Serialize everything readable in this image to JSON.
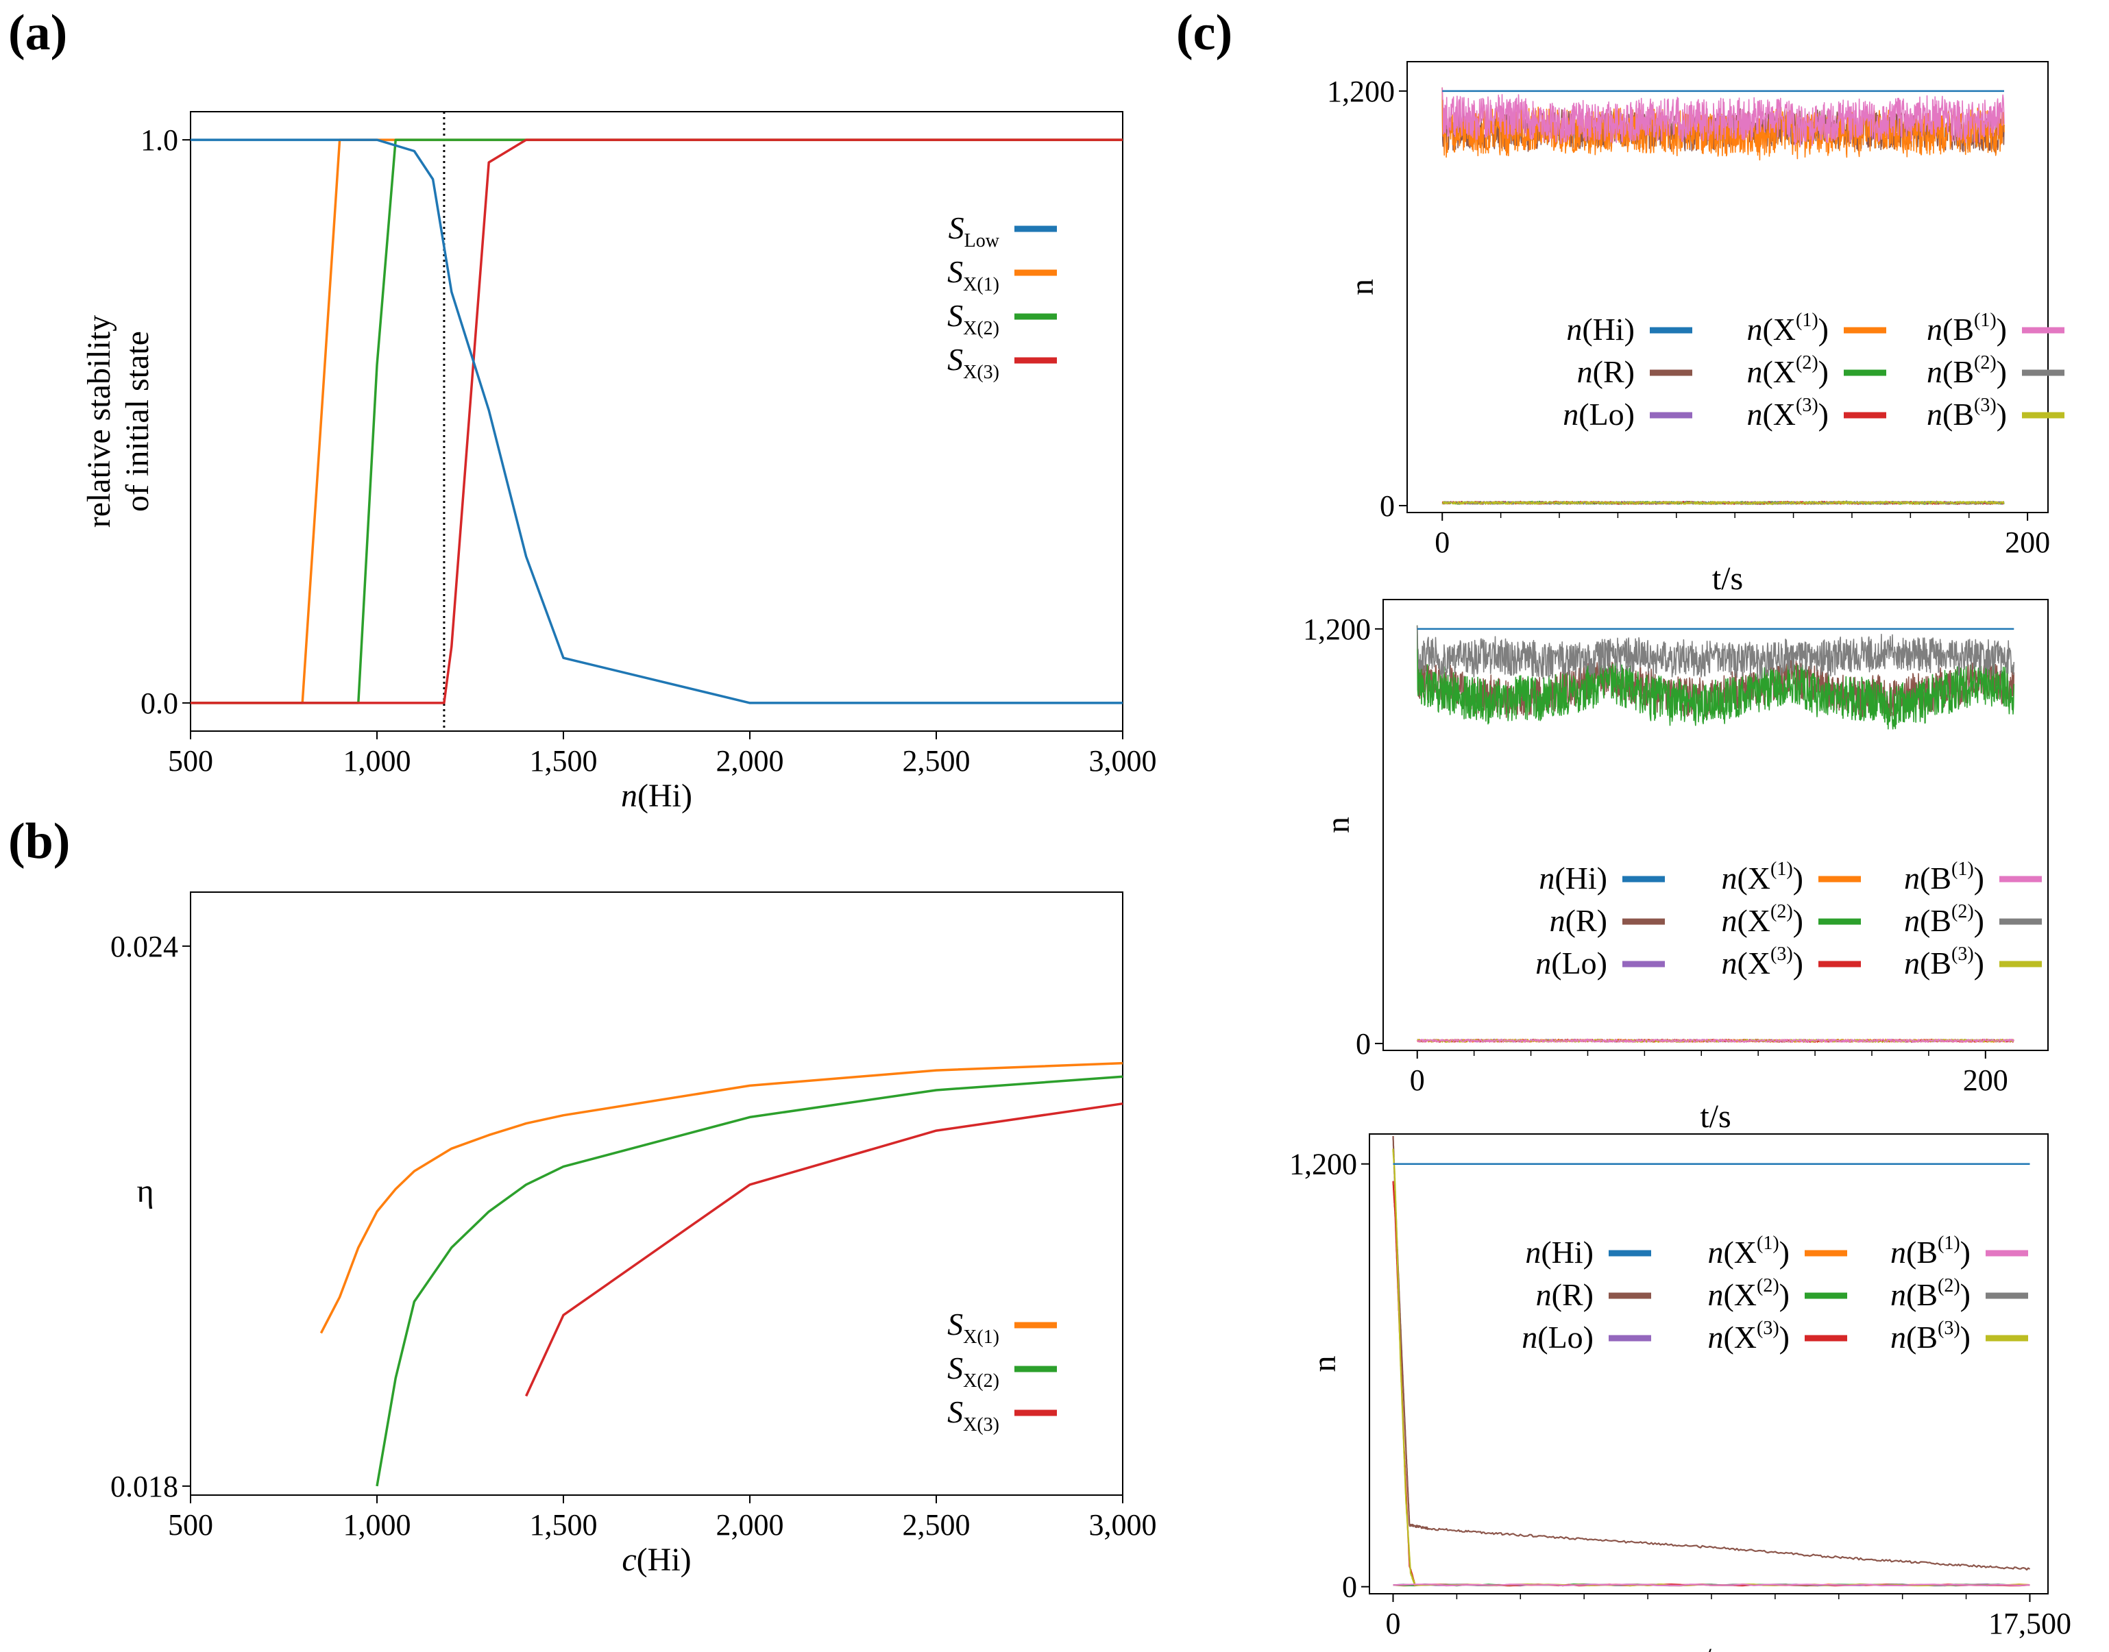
{
  "panel_labels": {
    "a": "(a)",
    "b": "(b)",
    "c": "(c)"
  },
  "colors": {
    "blue": "#1f77b4",
    "orange": "#ff7f0e",
    "green": "#2ca02c",
    "red": "#d62728",
    "purple": "#9467bd",
    "brown": "#8c564b",
    "pink": "#e377c2",
    "gray": "#7f7f7f",
    "olive": "#bcbd22"
  },
  "chart_data": [
    {
      "id": "a",
      "type": "line",
      "title": "",
      "xlabel_italic": "n",
      "xlabel_rest": "(Hi)",
      "ylabel_line1": "relative stability",
      "ylabel_line2": "of initial state",
      "xlim": [
        500,
        3000
      ],
      "ylim": [
        -0.05,
        1.05
      ],
      "xticks": [
        500,
        1000,
        1500,
        2000,
        2500,
        3000
      ],
      "xtick_labels": [
        "500",
        "1,000",
        "1,500",
        "2,000",
        "2,500",
        "3,000"
      ],
      "yticks": [
        0.0,
        1.0
      ],
      "ytick_labels": [
        "0.0",
        "1.0"
      ],
      "vline_x": 1180,
      "legend_position": "right",
      "series": [
        {
          "name": "S",
          "sub": "Low",
          "color": "blue",
          "x": [
            500,
            1000,
            1100,
            1150,
            1200,
            1300,
            1400,
            1500,
            2000,
            2500,
            3000
          ],
          "y": [
            1.0,
            1.0,
            0.98,
            0.93,
            0.73,
            0.52,
            0.26,
            0.08,
            0.0,
            0.0,
            0.0
          ]
        },
        {
          "name": "S",
          "sub": "X(1)",
          "color": "orange",
          "x": [
            500,
            800,
            900,
            1000,
            3000
          ],
          "y": [
            0.0,
            0.0,
            1.0,
            1.0,
            1.0
          ]
        },
        {
          "name": "S",
          "sub": "X(2)",
          "color": "green",
          "x": [
            500,
            950,
            1000,
            1050,
            3000
          ],
          "y": [
            0.0,
            0.0,
            0.6,
            1.0,
            1.0
          ]
        },
        {
          "name": "S",
          "sub": "X(3)",
          "color": "red",
          "x": [
            500,
            1180,
            1200,
            1300,
            1400,
            3000
          ],
          "y": [
            0.0,
            0.0,
            0.1,
            0.96,
            1.0,
            1.0
          ]
        }
      ]
    },
    {
      "id": "b",
      "type": "line",
      "title": "",
      "xlabel_italic": "c",
      "xlabel_rest": "(Hi)",
      "ylabel": "η",
      "xlim": [
        500,
        3000
      ],
      "ylim": [
        0.0179,
        0.0246
      ],
      "xticks": [
        500,
        1000,
        1500,
        2000,
        2500,
        3000
      ],
      "xtick_labels": [
        "500",
        "1,000",
        "1,500",
        "2,000",
        "2,500",
        "3,000"
      ],
      "yticks": [
        0.018,
        0.024
      ],
      "ytick_labels": [
        "0.018",
        "0.024"
      ],
      "legend_position": "lower right",
      "series": [
        {
          "name": "S",
          "sub": "X(1)",
          "color": "orange",
          "x": [
            850,
            900,
            950,
            1000,
            1050,
            1100,
            1200,
            1300,
            1400,
            1500,
            2000,
            2500,
            3000
          ],
          "y": [
            0.0197,
            0.0201,
            0.02065,
            0.02105,
            0.0213,
            0.0215,
            0.02175,
            0.0219,
            0.02203,
            0.02212,
            0.02245,
            0.02262,
            0.0227
          ]
        },
        {
          "name": "S",
          "sub": "X(2)",
          "color": "green",
          "x": [
            1000,
            1050,
            1100,
            1200,
            1300,
            1400,
            1500,
            2000,
            2500,
            3000
          ],
          "y": [
            0.018,
            0.0192,
            0.02005,
            0.02065,
            0.02105,
            0.02135,
            0.02155,
            0.0221,
            0.0224,
            0.02255
          ]
        },
        {
          "name": "S",
          "sub": "X(3)",
          "color": "red",
          "x": [
            1400,
            1500,
            2000,
            2500,
            3000
          ],
          "y": [
            0.019,
            0.0199,
            0.02135,
            0.02195,
            0.02225
          ]
        }
      ]
    },
    {
      "id": "c1",
      "type": "line",
      "title": "",
      "xlabel": "t/s",
      "ylabel": "n",
      "xlim": [
        -12,
        207
      ],
      "ylim": [
        -20,
        1285
      ],
      "xticks": [
        0,
        200
      ],
      "xtick_labels": [
        "0",
        "200"
      ],
      "minor_xticks": [
        20,
        40,
        60,
        80,
        100,
        120,
        140,
        160,
        180
      ],
      "yticks": [
        0,
        1200
      ],
      "ytick_labels": [
        "0",
        "1,200"
      ],
      "t_end": 192,
      "legend_position": "center right",
      "series": [
        {
          "name": "Hi",
          "sup": "",
          "color": "blue",
          "kind": "const",
          "level": 1200
        },
        {
          "name": "R",
          "sup": "",
          "color": "brown",
          "kind": "noise",
          "level": 1085,
          "amp": 65,
          "drift": 0
        },
        {
          "name": "Lo",
          "sup": "",
          "color": "purple",
          "kind": "noise",
          "level": 8,
          "amp": 5,
          "drift": 0
        },
        {
          "name": "X",
          "sup": "(1)",
          "color": "orange",
          "kind": "noise",
          "level": 1080,
          "amp": 80,
          "drift": 0
        },
        {
          "name": "X",
          "sup": "(2)",
          "color": "green",
          "kind": "noise",
          "level": 8,
          "amp": 5,
          "drift": 0
        },
        {
          "name": "X",
          "sup": "(3)",
          "color": "red",
          "kind": "noise",
          "level": 8,
          "amp": 5,
          "drift": 0
        },
        {
          "name": "B",
          "sup": "(1)",
          "color": "pink",
          "kind": "noise",
          "level": 1115,
          "amp": 75,
          "drift": 0
        },
        {
          "name": "B",
          "sup": "(2)",
          "color": "gray",
          "kind": "noise",
          "level": 8,
          "amp": 5,
          "drift": 0
        },
        {
          "name": "B",
          "sup": "(3)",
          "color": "olive",
          "kind": "noise",
          "level": 8,
          "amp": 5,
          "drift": 0
        }
      ]
    },
    {
      "id": "c2",
      "type": "line",
      "title": "",
      "xlabel": "t/s",
      "ylabel": "n",
      "xlim": [
        -12,
        222
      ],
      "ylim": [
        -20,
        1285
      ],
      "xticks": [
        0,
        200
      ],
      "xtick_labels": [
        "0",
        "200"
      ],
      "minor_xticks": [
        20,
        40,
        60,
        80,
        100,
        120,
        140,
        160,
        180
      ],
      "yticks": [
        0,
        1200
      ],
      "ytick_labels": [
        "0",
        "1,200"
      ],
      "t_end": 210,
      "legend_position": "center right",
      "series": [
        {
          "name": "Hi",
          "sup": "",
          "color": "blue",
          "kind": "const",
          "level": 1200
        },
        {
          "name": "R",
          "sup": "",
          "color": "brown",
          "kind": "noise",
          "level": 1060,
          "amp": 70,
          "drift": 1
        },
        {
          "name": "Lo",
          "sup": "",
          "color": "purple",
          "kind": "noise",
          "level": 8,
          "amp": 5,
          "drift": 0
        },
        {
          "name": "X",
          "sup": "(1)",
          "color": "orange",
          "kind": "noise",
          "level": 8,
          "amp": 5,
          "drift": 0
        },
        {
          "name": "X",
          "sup": "(2)",
          "color": "green",
          "kind": "noise",
          "level": 1050,
          "amp": 80,
          "drift": 1
        },
        {
          "name": "X",
          "sup": "(3)",
          "color": "red",
          "kind": "noise",
          "level": 8,
          "amp": 5,
          "drift": 0
        },
        {
          "name": "B",
          "sup": "(1)",
          "color": "pink",
          "kind": "noise",
          "level": 8,
          "amp": 5,
          "drift": 0
        },
        {
          "name": "B",
          "sup": "(2)",
          "color": "gray",
          "kind": "noise",
          "level": 1120,
          "amp": 65,
          "drift": 0
        },
        {
          "name": "B",
          "sup": "(3)",
          "color": "olive",
          "kind": "noise",
          "level": 8,
          "amp": 5,
          "drift": 0
        }
      ]
    },
    {
      "id": "c3",
      "type": "line",
      "title": "",
      "xlabel": "t/s",
      "ylabel": "n",
      "xlim": [
        -650,
        18000
      ],
      "ylim": [
        -20,
        1285
      ],
      "xticks": [
        0,
        17500
      ],
      "xtick_labels": [
        "0",
        "17,500"
      ],
      "minor_xticks": [
        1750,
        3500,
        5250,
        7000,
        8750,
        10500,
        12250,
        14000,
        15750
      ],
      "yticks": [
        0,
        1200
      ],
      "ytick_labels": [
        "0",
        "1,200"
      ],
      "t_end": 17500,
      "legend_position": "upper right",
      "series": [
        {
          "name": "Hi",
          "sup": "",
          "color": "blue",
          "kind": "const",
          "level": 1200
        },
        {
          "name": "R",
          "sup": "",
          "color": "brown",
          "kind": "path",
          "x": [
            0,
            80,
            200,
            350,
            450,
            1000,
            3000,
            6000,
            9000,
            12000,
            15000,
            17500
          ],
          "y": [
            1280,
            1050,
            750,
            400,
            175,
            165,
            150,
            130,
            110,
            85,
            65,
            50
          ]
        },
        {
          "name": "Lo",
          "sup": "",
          "color": "purple",
          "kind": "path",
          "x": [
            0,
            17500
          ],
          "y": [
            5,
            5
          ]
        },
        {
          "name": "X",
          "sup": "(1)",
          "color": "orange",
          "kind": "path",
          "x": [
            0,
            17500
          ],
          "y": [
            5,
            5
          ]
        },
        {
          "name": "X",
          "sup": "(2)",
          "color": "green",
          "kind": "path",
          "x": [
            0,
            17500
          ],
          "y": [
            5,
            5
          ]
        },
        {
          "name": "X",
          "sup": "(3)",
          "color": "red",
          "kind": "path",
          "x": [
            0,
            60,
            150,
            300,
            450,
            600,
            17500
          ],
          "y": [
            1150,
            1050,
            800,
            400,
            60,
            5,
            5
          ]
        },
        {
          "name": "B",
          "sup": "(1)",
          "color": "pink",
          "kind": "path",
          "x": [
            0,
            17500
          ],
          "y": [
            5,
            5
          ]
        },
        {
          "name": "B",
          "sup": "(2)",
          "color": "gray",
          "kind": "path",
          "x": [
            0,
            17500
          ],
          "y": [
            5,
            5
          ]
        },
        {
          "name": "B",
          "sup": "(3)",
          "color": "olive",
          "kind": "path",
          "x": [
            0,
            40,
            100,
            200,
            350,
            480,
            600,
            17500
          ],
          "y": [
            1240,
            1180,
            1000,
            650,
            250,
            40,
            5,
            5
          ]
        }
      ]
    }
  ]
}
